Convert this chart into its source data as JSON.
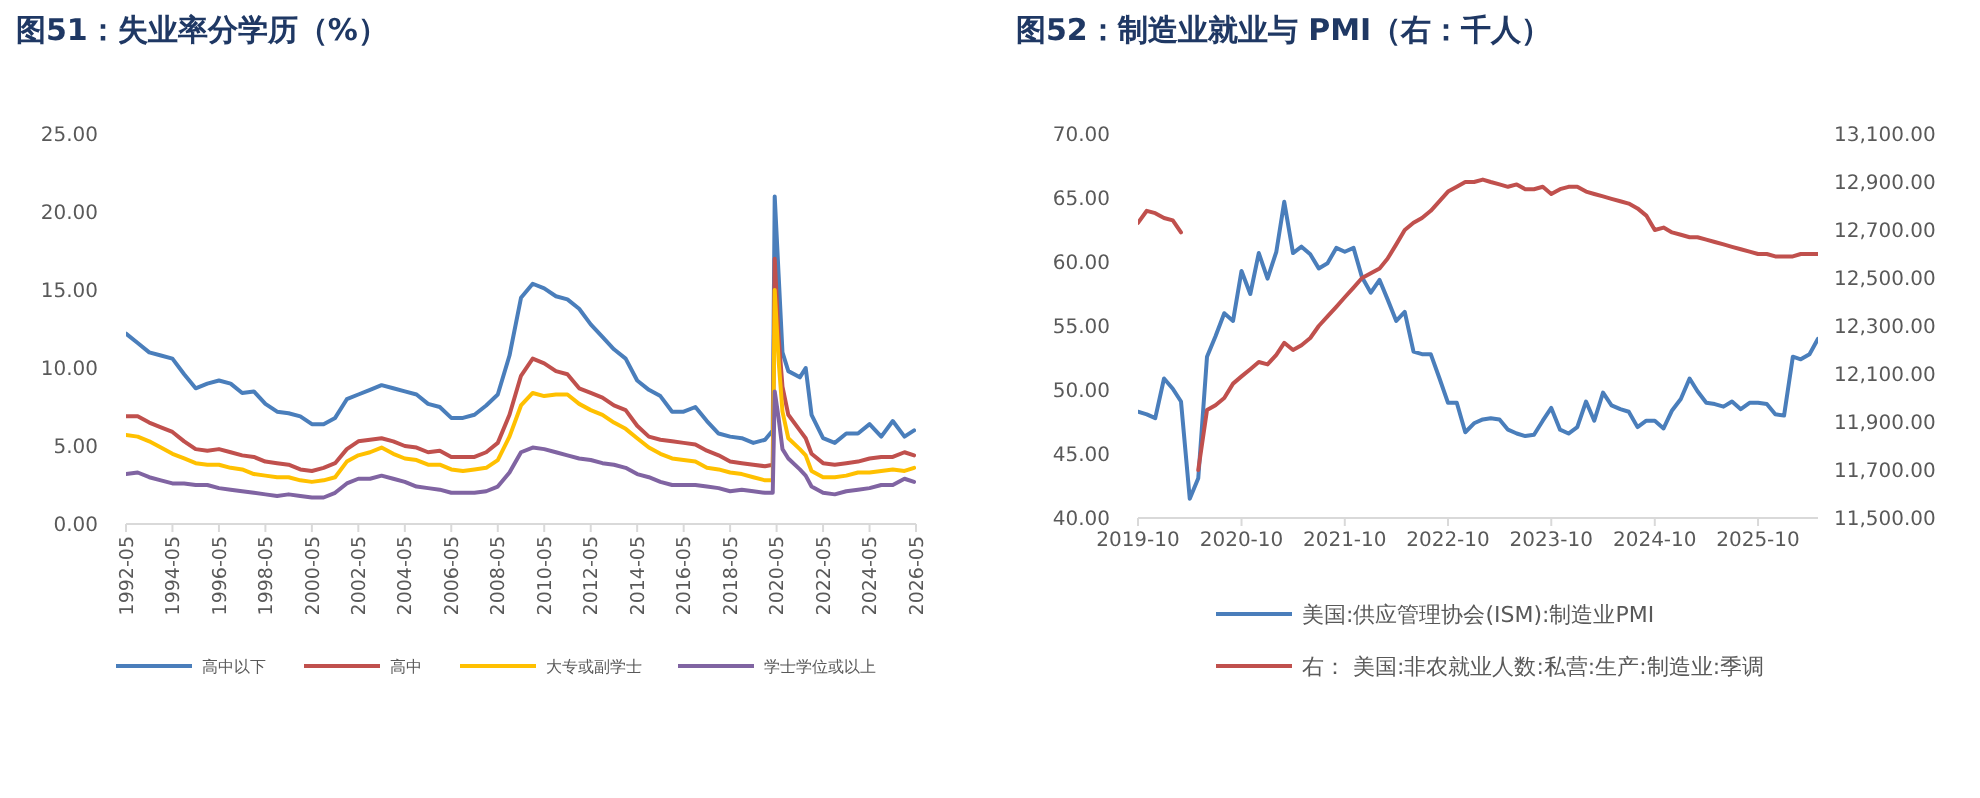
{
  "chart_data": [
    {
      "type": "line",
      "title": "图51：失业率分学历（%）",
      "x": [
        "1992-05",
        "1992-11",
        "1993-05",
        "1993-11",
        "1994-05",
        "1994-11",
        "1995-05",
        "1995-11",
        "1996-05",
        "1996-11",
        "1997-05",
        "1997-11",
        "1998-05",
        "1998-11",
        "1999-05",
        "1999-11",
        "2000-05",
        "2000-11",
        "2001-05",
        "2001-11",
        "2002-05",
        "2002-11",
        "2003-05",
        "2003-11",
        "2004-05",
        "2004-11",
        "2005-05",
        "2005-11",
        "2006-05",
        "2006-11",
        "2007-05",
        "2007-11",
        "2008-05",
        "2008-11",
        "2009-05",
        "2009-11",
        "2010-05",
        "2010-11",
        "2011-05",
        "2011-11",
        "2012-05",
        "2012-11",
        "2013-05",
        "2013-11",
        "2014-05",
        "2014-11",
        "2015-05",
        "2015-11",
        "2016-05",
        "2016-11",
        "2017-05",
        "2017-11",
        "2018-05",
        "2018-11",
        "2019-05",
        "2019-11",
        "2020-03",
        "2020-04",
        "2020-06",
        "2020-08",
        "2020-11",
        "2021-05",
        "2021-08",
        "2021-11",
        "2022-05",
        "2022-11",
        "2023-05",
        "2023-11",
        "2024-05",
        "2024-11",
        "2025-05",
        "2025-11",
        "2026-04"
      ],
      "series": [
        {
          "name": "高中以下",
          "color": "#4a7ebb",
          "values": [
            12.2,
            11.6,
            11.0,
            10.8,
            10.6,
            9.6,
            8.7,
            9.0,
            9.2,
            9.0,
            8.4,
            8.5,
            7.7,
            7.2,
            7.1,
            6.9,
            6.4,
            6.4,
            6.8,
            8.0,
            8.3,
            8.6,
            8.9,
            8.7,
            8.5,
            8.3,
            7.7,
            7.5,
            6.8,
            6.8,
            7.0,
            7.6,
            8.3,
            10.8,
            14.5,
            15.4,
            15.1,
            14.6,
            14.4,
            13.8,
            12.8,
            12.0,
            11.2,
            10.6,
            9.2,
            8.6,
            8.2,
            7.2,
            7.2,
            7.5,
            6.6,
            5.8,
            5.6,
            5.5,
            5.2,
            5.4,
            6.0,
            21.0,
            16.0,
            11.0,
            9.8,
            9.4,
            10.0,
            7.0,
            5.5,
            5.2,
            5.8,
            5.8,
            6.4,
            5.6,
            6.6,
            5.6,
            6.0
          ]
        },
        {
          "name": "高中",
          "color": "#c0504d",
          "values": [
            6.9,
            6.9,
            6.5,
            6.2,
            5.9,
            5.3,
            4.8,
            4.7,
            4.8,
            4.6,
            4.4,
            4.3,
            4.0,
            3.9,
            3.8,
            3.5,
            3.4,
            3.6,
            3.9,
            4.8,
            5.3,
            5.4,
            5.5,
            5.3,
            5.0,
            4.9,
            4.6,
            4.7,
            4.3,
            4.3,
            4.3,
            4.6,
            5.2,
            7.0,
            9.5,
            10.6,
            10.3,
            9.8,
            9.6,
            8.7,
            8.4,
            8.1,
            7.6,
            7.3,
            6.3,
            5.6,
            5.4,
            5.3,
            5.2,
            5.1,
            4.7,
            4.4,
            4.0,
            3.9,
            3.8,
            3.7,
            3.8,
            17.0,
            12.0,
            8.8,
            7.0,
            6.0,
            5.5,
            4.5,
            3.9,
            3.8,
            3.9,
            4.0,
            4.2,
            4.3,
            4.3,
            4.6,
            4.4
          ]
        },
        {
          "name": "大专或副学士",
          "color": "#ffc000",
          "values": [
            5.7,
            5.6,
            5.3,
            4.9,
            4.5,
            4.2,
            3.9,
            3.8,
            3.8,
            3.6,
            3.5,
            3.2,
            3.1,
            3.0,
            3.0,
            2.8,
            2.7,
            2.8,
            3.0,
            4.0,
            4.4,
            4.6,
            4.9,
            4.5,
            4.2,
            4.1,
            3.8,
            3.8,
            3.5,
            3.4,
            3.5,
            3.6,
            4.1,
            5.6,
            7.6,
            8.4,
            8.2,
            8.3,
            8.3,
            7.7,
            7.3,
            7.0,
            6.5,
            6.1,
            5.5,
            4.9,
            4.5,
            4.2,
            4.1,
            4.0,
            3.6,
            3.5,
            3.3,
            3.2,
            3.0,
            2.8,
            2.8,
            15.0,
            10.5,
            7.2,
            5.5,
            4.8,
            4.4,
            3.4,
            3.0,
            3.0,
            3.1,
            3.3,
            3.3,
            3.4,
            3.5,
            3.4,
            3.6
          ]
        },
        {
          "name": "学士学位或以上",
          "color": "#8064a2",
          "values": [
            3.2,
            3.3,
            3.0,
            2.8,
            2.6,
            2.6,
            2.5,
            2.5,
            2.3,
            2.2,
            2.1,
            2.0,
            1.9,
            1.8,
            1.9,
            1.8,
            1.7,
            1.7,
            2.0,
            2.6,
            2.9,
            2.9,
            3.1,
            2.9,
            2.7,
            2.4,
            2.3,
            2.2,
            2.0,
            2.0,
            2.0,
            2.1,
            2.4,
            3.3,
            4.6,
            4.9,
            4.8,
            4.6,
            4.4,
            4.2,
            4.1,
            3.9,
            3.8,
            3.6,
            3.2,
            3.0,
            2.7,
            2.5,
            2.5,
            2.5,
            2.4,
            2.3,
            2.1,
            2.2,
            2.1,
            2.0,
            2.0,
            8.5,
            6.8,
            4.8,
            4.2,
            3.5,
            3.1,
            2.4,
            2.0,
            1.9,
            2.1,
            2.2,
            2.3,
            2.5,
            2.5,
            2.9,
            2.7
          ]
        }
      ],
      "xlim": [
        "1992-05",
        "2026-05"
      ],
      "xticks": [
        "1992-05",
        "1994-05",
        "1996-05",
        "1998-05",
        "2000-05",
        "2002-05",
        "2004-05",
        "2006-05",
        "2008-05",
        "2010-05",
        "2012-05",
        "2014-05",
        "2016-05",
        "2018-05",
        "2020-05",
        "2022-05",
        "2024-05",
        "2026-05"
      ],
      "ylim": [
        0,
        25
      ],
      "yticks": [
        {
          "value": 0,
          "label": "0.00"
        },
        {
          "value": 5,
          "label": "5.00"
        },
        {
          "value": 10,
          "label": "10.00"
        },
        {
          "value": 15,
          "label": "15.00"
        },
        {
          "value": 20,
          "label": "20.00"
        },
        {
          "value": 25,
          "label": "25.00"
        }
      ],
      "grid": false,
      "legend": "bottom",
      "marker": "none",
      "line_style": "solid"
    },
    {
      "type": "line",
      "title": "图52：制造业就业与 PMI（右：千人）",
      "x": [
        "2019-10",
        "2019-11",
        "2019-12",
        "2020-01",
        "2020-02",
        "2020-03",
        "2020-04",
        "2020-05",
        "2020-06",
        "2020-07",
        "2020-08",
        "2020-09",
        "2020-10",
        "2020-11",
        "2020-12",
        "2021-01",
        "2021-02",
        "2021-03",
        "2021-04",
        "2021-05",
        "2021-06",
        "2021-07",
        "2021-08",
        "2021-09",
        "2021-10",
        "2021-11",
        "2021-12",
        "2022-01",
        "2022-02",
        "2022-03",
        "2022-04",
        "2022-05",
        "2022-06",
        "2022-07",
        "2022-08",
        "2022-09",
        "2022-10",
        "2022-11",
        "2022-12",
        "2023-01",
        "2023-02",
        "2023-03",
        "2023-04",
        "2023-05",
        "2023-06",
        "2023-07",
        "2023-08",
        "2023-09",
        "2023-10",
        "2023-11",
        "2023-12",
        "2024-01",
        "2024-02",
        "2024-03",
        "2024-04",
        "2024-05",
        "2024-06",
        "2024-07",
        "2024-08",
        "2024-09",
        "2024-10",
        "2024-11",
        "2024-12",
        "2025-01",
        "2025-02",
        "2025-03",
        "2025-04",
        "2025-05",
        "2025-06",
        "2025-07",
        "2025-08",
        "2025-09",
        "2025-10",
        "2025-11",
        "2025-12",
        "2026-01",
        "2026-02",
        "2026-03",
        "2026-04",
        "2026-05"
      ],
      "series": [
        {
          "name": "美国:供应管理协会(ISM):制造业PMI",
          "color": "#4a7ebb",
          "values": [
            48.3,
            48.1,
            47.8,
            50.9,
            50.1,
            49.1,
            41.5,
            43.1,
            52.6,
            54.2,
            56.0,
            55.4,
            59.3,
            57.5,
            60.7,
            58.7,
            60.8,
            64.7,
            60.7,
            61.2,
            60.6,
            59.5,
            59.9,
            61.1,
            60.8,
            61.1,
            58.8,
            57.6,
            58.6,
            57.1,
            55.4,
            56.1,
            53.0,
            52.8,
            52.8,
            50.9,
            49.0,
            49.0,
            46.7,
            47.4,
            47.7,
            47.8,
            47.7,
            46.9,
            46.6,
            46.4,
            46.5,
            47.6,
            48.6,
            46.9,
            46.6,
            47.1,
            49.1,
            47.6,
            49.8,
            48.8,
            48.5,
            48.3,
            47.1,
            47.6,
            47.6,
            47.0,
            48.4,
            49.3,
            50.9,
            49.9,
            49.0,
            48.9,
            48.7,
            49.1,
            48.5,
            49.0,
            49.0,
            48.9,
            48.1,
            48.0,
            52.6,
            52.4,
            52.8,
            54.0
          ]
        },
        {
          "name": "右： 美国:非农就业人数:私营:生产:制造业:季调",
          "color": "#c0504d",
          "axis": "y2",
          "values": [
            12730,
            12780,
            12770,
            12750,
            12740,
            12690,
            null,
            11700,
            11950,
            11970,
            12000,
            12060,
            12090,
            12120,
            12150,
            12140,
            12180,
            12230,
            12200,
            12220,
            12250,
            12300,
            12340,
            12380,
            12420,
            12460,
            12500,
            12520,
            12540,
            12580,
            12640,
            12700,
            12730,
            12750,
            12780,
            12820,
            12860,
            12880,
            12900,
            12900,
            12910,
            12900,
            12890,
            12880,
            12890,
            12870,
            12870,
            12880,
            12850,
            12870,
            12880,
            12880,
            12860,
            12850,
            12840,
            12830,
            12820,
            12810,
            12790,
            12760,
            12700,
            12710,
            12690,
            12680,
            12670,
            12670,
            12660,
            12650,
            12640,
            12630,
            12620,
            12610,
            12600,
            12600,
            12590,
            12590,
            12590,
            12600,
            12600,
            12600
          ]
        }
      ],
      "xlim": [
        "2019-10",
        "2026-05"
      ],
      "xticks": [
        "2019-10",
        "2020-10",
        "2021-10",
        "2022-10",
        "2023-10",
        "2024-10",
        "2025-10"
      ],
      "ylim": [
        40,
        70
      ],
      "yticks": [
        {
          "value": 40,
          "label": "40.00"
        },
        {
          "value": 45,
          "label": "45.00"
        },
        {
          "value": 50,
          "label": "50.00"
        },
        {
          "value": 55,
          "label": "55.00"
        },
        {
          "value": 60,
          "label": "60.00"
        },
        {
          "value": 65,
          "label": "65.00"
        },
        {
          "value": 70,
          "label": "70.00"
        }
      ],
      "y2lim": [
        11500,
        13100
      ],
      "y2ticks": [
        {
          "value": 11500,
          "label": "11,500.00"
        },
        {
          "value": 11700,
          "label": "11,700.00"
        },
        {
          "value": 11900,
          "label": "11,900.00"
        },
        {
          "value": 12100,
          "label": "12,100.00"
        },
        {
          "value": 12300,
          "label": "12,300.00"
        },
        {
          "value": 12500,
          "label": "12,500.00"
        },
        {
          "value": 12700,
          "label": "12,700.00"
        },
        {
          "value": 12900,
          "label": "12,900.00"
        },
        {
          "value": 13100,
          "label": "13,100.00"
        }
      ],
      "grid": false,
      "legend": "bottom",
      "marker": "none",
      "line_style": "solid"
    }
  ]
}
